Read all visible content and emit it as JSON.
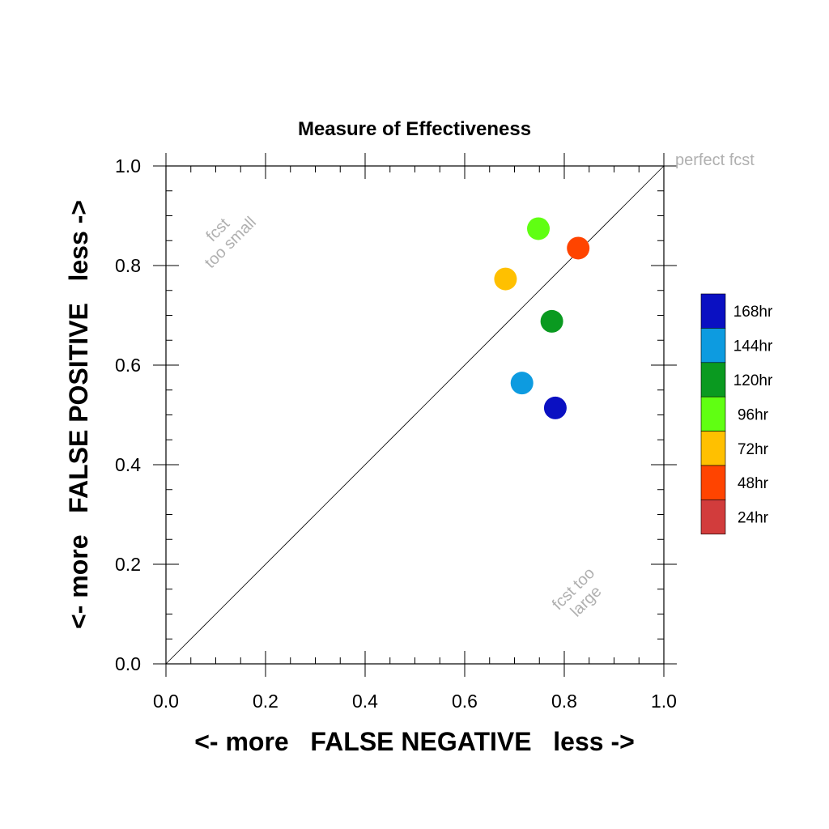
{
  "chart_data": {
    "type": "scatter",
    "title": "Measure of Effectiveness",
    "xlabel": "<- more   FALSE NEGATIVE   less ->",
    "ylabel": "<- more   FALSE POSITIVE   less ->",
    "xlim": [
      0,
      1
    ],
    "ylim": [
      0,
      1
    ],
    "x_ticks": [
      "0.0",
      "0.2",
      "0.4",
      "0.6",
      "0.8",
      "1.0"
    ],
    "y_ticks": [
      "0.0",
      "0.2",
      "0.4",
      "0.6",
      "0.8",
      "1.0"
    ],
    "grid": false,
    "diagonal_line": true,
    "annotations": {
      "top_right": "perfect fcst",
      "upper_left": [
        "fcst",
        "too small"
      ],
      "lower_right": [
        "fcst too",
        "large"
      ]
    },
    "legend_position": "right",
    "series": [
      {
        "name": "168hr",
        "color": "#0a10c2",
        "x": 0.782,
        "y": 0.514
      },
      {
        "name": "144hr",
        "color": "#0d9be0",
        "x": 0.715,
        "y": 0.564
      },
      {
        "name": "120hr",
        "color": "#0a9a20",
        "x": 0.775,
        "y": 0.688
      },
      {
        "name": "96hr",
        "color": "#60ff12",
        "x": 0.748,
        "y": 0.874
      },
      {
        "name": "72hr",
        "color": "#ffc000",
        "x": 0.682,
        "y": 0.773
      },
      {
        "name": "48hr",
        "color": "#ff4400",
        "x": 0.828,
        "y": 0.835
      },
      {
        "name": "24hr",
        "color": "#d23c3c"
      }
    ]
  }
}
